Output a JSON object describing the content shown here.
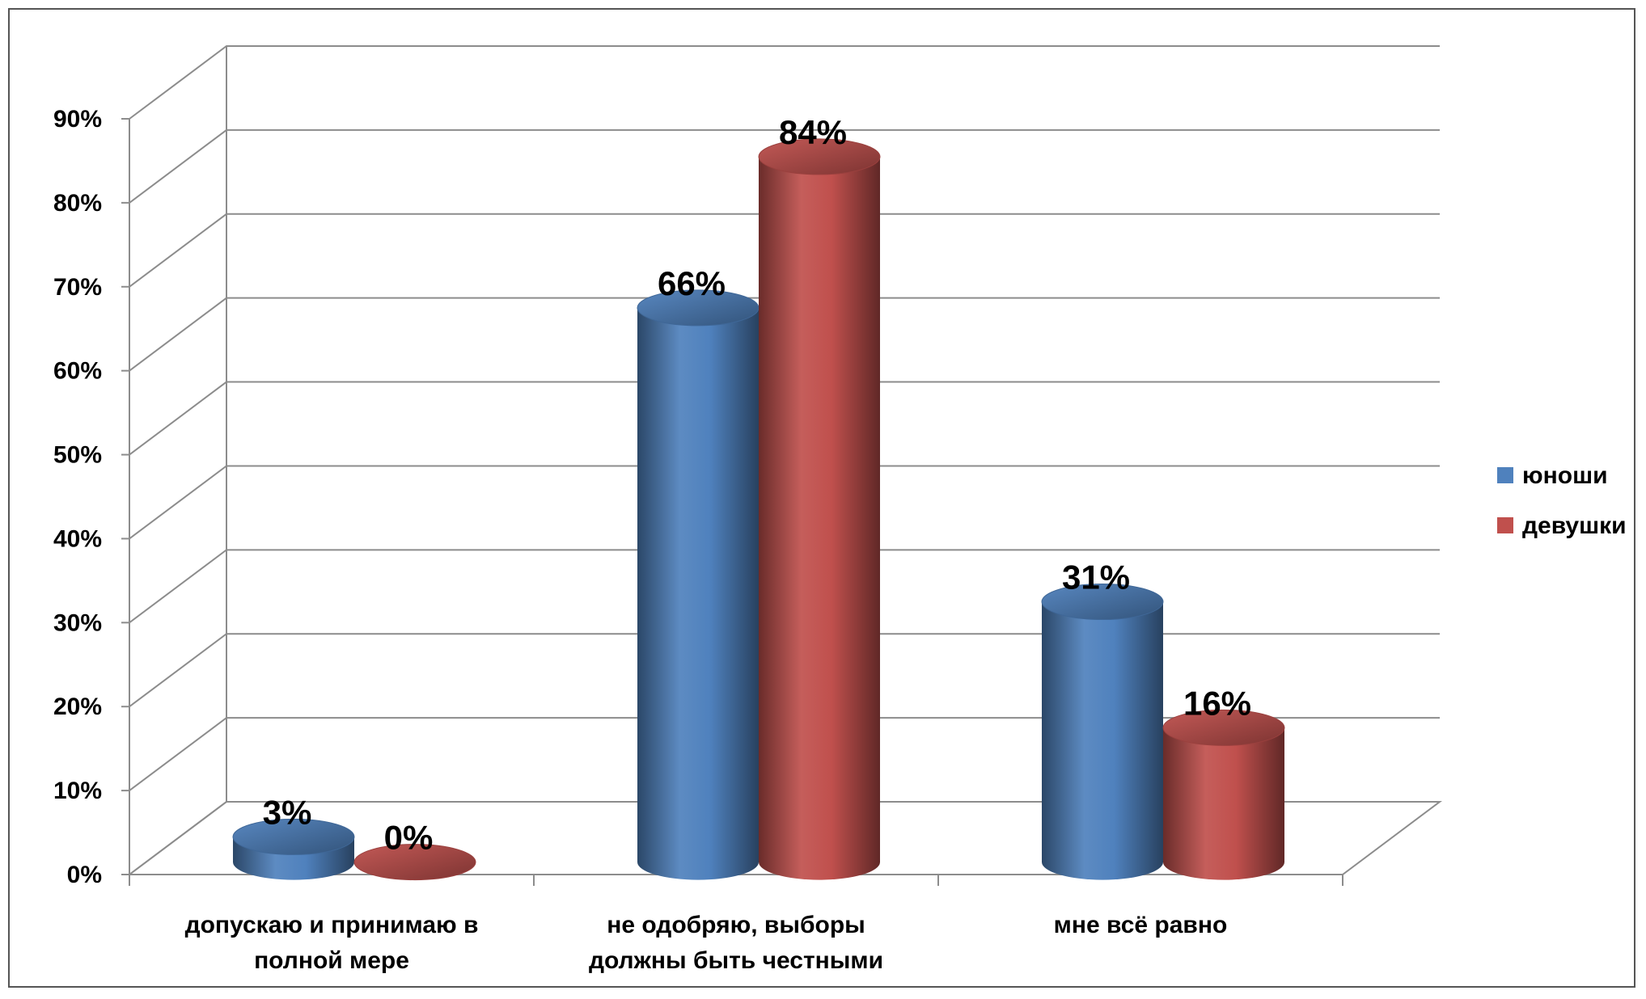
{
  "chart_data": {
    "type": "bar",
    "style": "3d-cylinder",
    "categories": [
      [
        "допускаю и принимаю в",
        "полной мере"
      ],
      [
        "не одобряю, выборы",
        "должны быть честными"
      ],
      [
        "мне всё равно"
      ]
    ],
    "series": [
      {
        "name": "юноши",
        "color": "#4F81BD",
        "values": [
          3,
          66,
          31
        ],
        "labels": [
          "3%",
          "66%",
          "31%"
        ]
      },
      {
        "name": "девушки",
        "color": "#C0504D",
        "values": [
          0,
          84,
          16
        ],
        "labels": [
          "0%",
          "84%",
          "16%"
        ]
      }
    ],
    "ylim": [
      0,
      90
    ],
    "yticks": [
      0,
      10,
      20,
      30,
      40,
      50,
      60,
      70,
      80,
      90
    ],
    "ytick_labels": [
      "0%",
      "10%",
      "20%",
      "30%",
      "40%",
      "50%",
      "60%",
      "70%",
      "80%",
      "90%"
    ],
    "grid": true,
    "legend_position": "right"
  }
}
